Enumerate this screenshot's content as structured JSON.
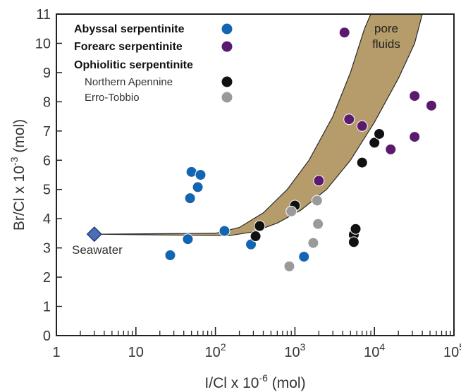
{
  "chart_data": {
    "type": "scatter",
    "title": "",
    "xlabel": "I/Cl x 10^-6 (mol)",
    "ylabel": "Br/Cl x 10^-3 (mol)",
    "xscale": "log",
    "xlim": [
      1,
      100000
    ],
    "ylim": [
      0,
      11
    ],
    "x_ticks": [
      {
        "value": 1,
        "base": "1",
        "exp": ""
      },
      {
        "value": 10,
        "base": "10",
        "exp": ""
      },
      {
        "value": 100,
        "base": "10",
        "exp": "2"
      },
      {
        "value": 1000,
        "base": "10",
        "exp": "3"
      },
      {
        "value": 10000,
        "base": "10",
        "exp": "4"
      },
      {
        "value": 100000,
        "base": "10",
        "exp": "5"
      }
    ],
    "y_ticks": [
      "0",
      "1",
      "2",
      "3",
      "4",
      "5",
      "6",
      "7",
      "8",
      "9",
      "10",
      "11"
    ],
    "legend": {
      "placement": "top-left",
      "entries": [
        {
          "label": "Abyssal serpentinite",
          "style": "bold",
          "color": "#1464b4"
        },
        {
          "label": "Forearc serpentinite",
          "style": "bold",
          "color": "#5a1a6e"
        },
        {
          "label": "Ophiolitic serpentinite",
          "style": "bold",
          "color": null
        },
        {
          "label": "Northern Apennine",
          "style": "normal",
          "color": "#111111"
        },
        {
          "label": "Erro-Tobbio",
          "style": "normal",
          "color": "#9a9a9a"
        }
      ]
    },
    "series": [
      {
        "name": "Abyssal serpentinite",
        "color": "#1464b4",
        "points": [
          {
            "x": 27,
            "y": 2.75
          },
          {
            "x": 45,
            "y": 3.3
          },
          {
            "x": 48,
            "y": 4.7
          },
          {
            "x": 50,
            "y": 5.6
          },
          {
            "x": 60,
            "y": 5.08
          },
          {
            "x": 65,
            "y": 5.5
          },
          {
            "x": 130,
            "y": 3.58
          },
          {
            "x": 280,
            "y": 3.12
          },
          {
            "x": 1300,
            "y": 2.7
          }
        ]
      },
      {
        "name": "Forearc serpentinite",
        "color": "#5a1a6e",
        "points": [
          {
            "x": 4200,
            "y": 10.37
          },
          {
            "x": 4800,
            "y": 7.4
          },
          {
            "x": 2000,
            "y": 5.3
          },
          {
            "x": 7000,
            "y": 7.17
          },
          {
            "x": 16000,
            "y": 6.37
          },
          {
            "x": 32000,
            "y": 8.2
          },
          {
            "x": 52000,
            "y": 7.87
          },
          {
            "x": 32000,
            "y": 6.8
          }
        ]
      },
      {
        "name": "Northern Apennine",
        "color": "#111111",
        "points": [
          {
            "x": 320,
            "y": 3.4
          },
          {
            "x": 360,
            "y": 3.75
          },
          {
            "x": 1000,
            "y": 4.45
          },
          {
            "x": 5500,
            "y": 3.45
          },
          {
            "x": 5800,
            "y": 3.65
          },
          {
            "x": 5500,
            "y": 3.2
          },
          {
            "x": 7000,
            "y": 5.92
          },
          {
            "x": 10000,
            "y": 6.6
          },
          {
            "x": 11500,
            "y": 6.9
          }
        ]
      },
      {
        "name": "Erro-Tobbio",
        "color": "#9a9a9a",
        "points": [
          {
            "x": 850,
            "y": 2.37
          },
          {
            "x": 900,
            "y": 4.25
          },
          {
            "x": 1700,
            "y": 3.17
          },
          {
            "x": 1900,
            "y": 4.62
          },
          {
            "x": 1950,
            "y": 3.82
          }
        ]
      }
    ],
    "seawater": {
      "label": "Seawater",
      "x": 3,
      "y": 3.47,
      "color": "#4a6fb5"
    },
    "pore_fluids": {
      "label_line1": "pore",
      "label_line2": "fluids",
      "fill": "#b59c6a",
      "upper": [
        [
          3,
          3.47
        ],
        [
          100,
          3.5
        ],
        [
          200,
          3.7
        ],
        [
          400,
          4.2
        ],
        [
          800,
          5.0
        ],
        [
          1500,
          6.0
        ],
        [
          3000,
          7.5
        ],
        [
          5000,
          9.0
        ],
        [
          7500,
          10.5
        ],
        [
          9000,
          11
        ]
      ],
      "lower": [
        [
          3,
          3.47
        ],
        [
          150,
          3.42
        ],
        [
          300,
          3.55
        ],
        [
          600,
          3.85
        ],
        [
          1200,
          4.3
        ],
        [
          2500,
          5.0
        ],
        [
          5000,
          6.0
        ],
        [
          10000,
          7.3
        ],
        [
          20000,
          8.8
        ],
        [
          32000,
          10.0
        ],
        [
          40000,
          11
        ]
      ]
    }
  }
}
